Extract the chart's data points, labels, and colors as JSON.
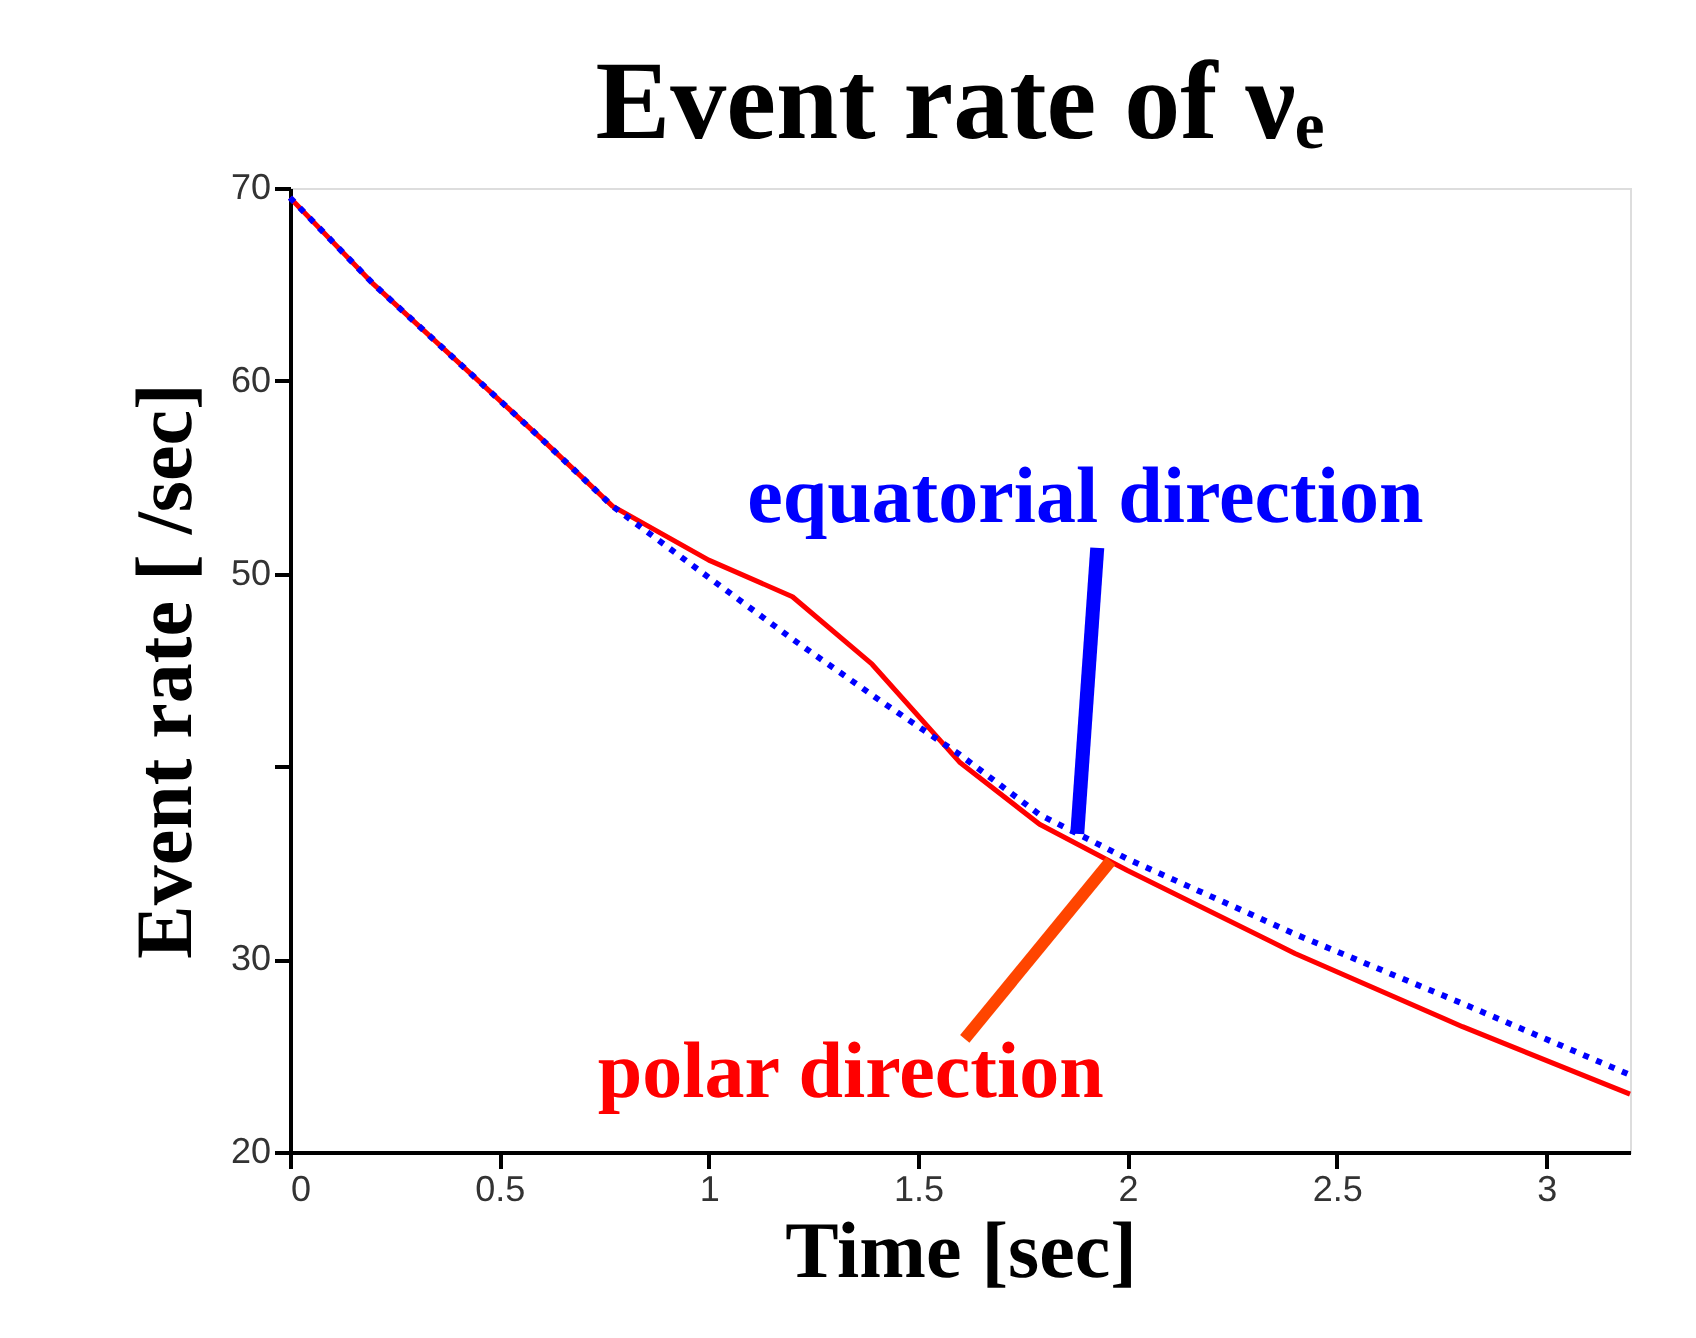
{
  "chart_data": {
    "type": "line",
    "title": "Event rate of νₑ",
    "xlabel": "Time [sec]",
    "ylabel": "Event rate [ /sec]",
    "xlim": [
      0,
      3.2
    ],
    "xticks": [
      0,
      0.5,
      1,
      1.5,
      2,
      2.5,
      3
    ],
    "ylim": [
      20,
      70
    ],
    "yticks": [
      20,
      30,
      {
        "value": 40,
        "label": null
      },
      50,
      60,
      70
    ],
    "grid": false,
    "marker": "none",
    "series": [
      {
        "color": "#ff0000",
        "line_style": "solid",
        "x": [
          0,
          0.2,
          0.41,
          0.6,
          0.77,
          1.0,
          1.2,
          1.39,
          1.6,
          1.79,
          2.0,
          2.4,
          2.8,
          3.2
        ],
        "values": [
          69.5,
          65.0,
          60.8,
          57.0,
          53.5,
          50.7,
          48.8,
          45.3,
          40.2,
          37.0,
          34.6,
          30.3,
          26.5,
          23.0
        ]
      },
      {
        "color": "#0000ff",
        "line_style": "dotted",
        "x": [
          0,
          0.2,
          0.41,
          0.6,
          0.77,
          1.0,
          1.2,
          1.41,
          1.6,
          1.79,
          2.0,
          2.4,
          2.8,
          3.2
        ],
        "values": [
          69.5,
          65.0,
          60.8,
          57.0,
          53.5,
          49.8,
          46.6,
          43.4,
          40.6,
          37.5,
          35.2,
          31.3,
          27.7,
          24.0
        ]
      }
    ],
    "annotations": [
      {
        "text": "equatorial direction",
        "x": 1.88,
        "y": 36.5
      },
      {
        "text": "polar direction",
        "x": 1.96,
        "y": 35.1
      }
    ]
  }
}
